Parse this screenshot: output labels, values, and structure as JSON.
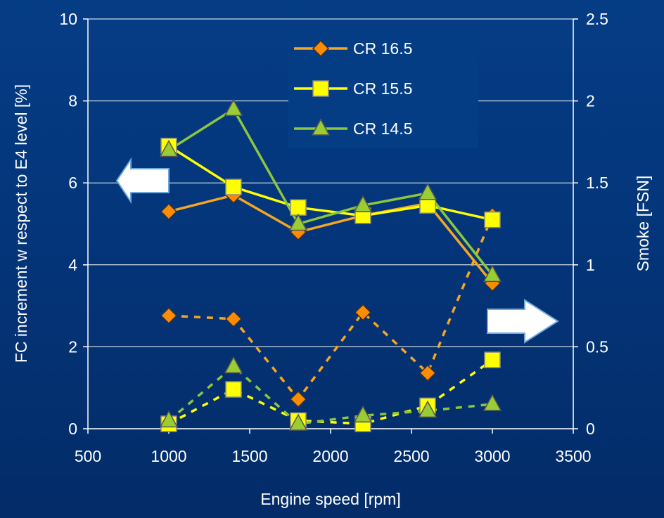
{
  "chart_data": {
    "type": "line",
    "title": "",
    "xlabel": "Engine speed [rpm]",
    "ylabel_left": "FC increment w respect to E4 level [%]",
    "ylabel_right": "Smoke [FSN]",
    "xlim": [
      500,
      3500
    ],
    "x_ticks": [
      "500",
      "1000",
      "1500",
      "2000",
      "2500",
      "3000",
      "3500"
    ],
    "ylim_left": [
      0,
      10
    ],
    "y_left_ticks": [
      "0",
      "2",
      "4",
      "6",
      "8",
      "10"
    ],
    "ylim_right": [
      0,
      2.5
    ],
    "y_right_ticks": [
      "0",
      "0.5",
      "1",
      "1.5",
      "2",
      "2.5"
    ],
    "grid": "horizontal",
    "legend_placement": "top-center",
    "series": [
      {
        "name": "CR 16.5",
        "marker": "diamond",
        "color": "#f5a623",
        "marker_fill": "#ff8c00",
        "fc": {
          "x": [
            1000,
            1400,
            1800,
            2200,
            2600,
            3000
          ],
          "y": [
            5.3,
            5.7,
            4.8,
            5.2,
            5.5,
            3.55
          ]
        },
        "smoke": {
          "x": [
            1000,
            1400,
            1800,
            2200,
            2600,
            3000
          ],
          "y": [
            0.69,
            0.67,
            0.18,
            0.71,
            0.34,
            1.3
          ]
        }
      },
      {
        "name": "CR 15.5",
        "marker": "square",
        "color": "#ffff00",
        "marker_fill": "#ffff00",
        "fc": {
          "x": [
            1000,
            1400,
            1800,
            2200,
            2600,
            3000
          ],
          "y": [
            6.9,
            5.9,
            5.4,
            5.2,
            5.45,
            5.1
          ]
        },
        "smoke": {
          "x": [
            1000,
            1400,
            1800,
            2200,
            2600,
            3000
          ],
          "y": [
            0.03,
            0.24,
            0.05,
            0.03,
            0.14,
            0.42
          ]
        }
      },
      {
        "name": "CR 14.5",
        "marker": "triangle",
        "color": "#8cc63f",
        "marker_fill": "#9acd32",
        "fc": {
          "x": [
            1000,
            1400,
            1800,
            2200,
            2600,
            3000
          ],
          "y": [
            6.8,
            7.8,
            5.0,
            5.45,
            5.75,
            3.75
          ]
        },
        "smoke": {
          "x": [
            1000,
            1400,
            1800,
            2200,
            2600,
            3000
          ],
          "y": [
            0.05,
            0.38,
            0.03,
            0.08,
            0.11,
            0.15
          ]
        }
      }
    ],
    "colors": {
      "grid": "#ffffff",
      "arrow_fill": "#ffffff",
      "arrow_stroke": "#6fa8dc",
      "text": "#ffffff",
      "marker_stroke": "#555555"
    }
  }
}
